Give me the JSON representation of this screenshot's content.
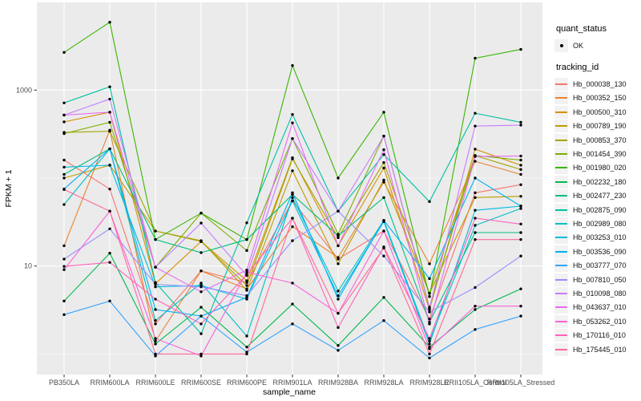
{
  "axes": {
    "x_title": "sample_name",
    "y_title": "FPKM + 1"
  },
  "legend": {
    "quant_status": {
      "title": "quant_status",
      "items": [
        {
          "label": "OK",
          "symbol": "black-point"
        }
      ]
    },
    "tracking_id": {
      "title": "tracking_id"
    }
  },
  "chart_data": {
    "type": "line",
    "title": "",
    "xlabel": "sample_name",
    "ylabel": "FPKM + 1",
    "yscale": "log10",
    "ylim": [
      0.58,
      9900
    ],
    "x_categories": [
      "PB350LA",
      "RRIM600LA",
      "RRIM600LE",
      "RRIM600SE",
      "RRIM600PE",
      "RRIM901LA",
      "RRIM928BA",
      "RRIM928LA",
      "RRIM928LE",
      "RRII105LA_Control",
      "RRII105LA_Stressed"
    ],
    "y_ticks": [
      {
        "label": "1000",
        "value": 1000
      },
      {
        "label": "10",
        "value": 10
      }
    ],
    "y_minor_gridlines": [
      1,
      100
    ],
    "panel_bg": "#EBEBEB",
    "gridline_color": "#FFFFFF",
    "point_color": "#000000",
    "legend_position": "right",
    "series": [
      {
        "name": "Hb_000038_130",
        "color": "#F8766D",
        "values": [
          160,
          75,
          2.2,
          8.8,
          6.5,
          55,
          12,
          25,
          2.5,
          68,
          84
        ]
      },
      {
        "name": "Hb_000352_150",
        "color": "#EA8331",
        "values": [
          17,
          350,
          1.4,
          8.8,
          5.5,
          28,
          12.5,
          90,
          10.6,
          155,
          110
        ]
      },
      {
        "name": "Hb_000500_310",
        "color": "#D89000",
        "values": [
          435,
          560,
          6.3,
          19,
          6.8,
          170,
          17,
          130,
          3.2,
          213,
          140
        ]
      },
      {
        "name": "Hb_000789_190",
        "color": "#C09B00",
        "values": [
          100,
          140,
          25,
          19.4,
          5.3,
          121,
          10.6,
          95,
          4.9,
          60,
          62
        ]
      },
      {
        "name": "Hb_000853_370",
        "color": "#A3A500",
        "values": [
          330,
          340,
          25,
          19,
          6.0,
          165,
          21,
          150,
          4.9,
          180,
          125
        ]
      },
      {
        "name": "Hb_001454_390",
        "color": "#7CAE00",
        "values": [
          320,
          430,
          9.7,
          40,
          15,
          281,
          23,
          300,
          3.4,
          180,
          160
        ]
      },
      {
        "name": "Hb_001980_020",
        "color": "#39B600",
        "values": [
          2680,
          5900,
          20,
          40,
          20,
          1900,
          100,
          560,
          4.5,
          2300,
          2900
        ]
      },
      {
        "name": "Hb_002232_180",
        "color": "#00BB4E",
        "values": [
          4.0,
          14,
          1.3,
          3.4,
          1.2,
          3.7,
          1.25,
          4.4,
          1.2,
          3.2,
          5.5
        ]
      },
      {
        "name": "Hb_002477_230",
        "color": "#00BF7D",
        "values": [
          110,
          215,
          20,
          14.2,
          20,
          65,
          22,
          60,
          2.3,
          24,
          24
        ]
      },
      {
        "name": "Hb_002875_090",
        "color": "#00C1A3",
        "values": [
          715,
          1090,
          6.5,
          1.7,
          31,
          528,
          42,
          185,
          54,
          545,
          430
        ]
      },
      {
        "name": "Hb_002989_080",
        "color": "#00BFC4",
        "values": [
          50,
          215,
          2.4,
          6.4,
          1.6,
          60,
          5.2,
          33,
          1.4,
          29,
          45
        ]
      },
      {
        "name": "Hb_003253_010",
        "color": "#00BAE0",
        "values": [
          133,
          140,
          5.8,
          6.0,
          4.2,
          55,
          4.6,
          32,
          1.3,
          43,
          48
        ]
      },
      {
        "name": "Hb_003536_090",
        "color": "#00B0F6",
        "values": [
          75,
          215,
          3.2,
          2.7,
          4.4,
          68,
          4.2,
          33,
          7.2,
          100,
          48
        ]
      },
      {
        "name": "Hb_003777_070",
        "color": "#35A2FF",
        "values": [
          2.8,
          4.0,
          0.95,
          2.7,
          1.05,
          2.2,
          1.1,
          2.4,
          0.9,
          1.9,
          2.7
        ]
      },
      {
        "name": "Hb_007810_050",
        "color": "#9590FF",
        "values": [
          12,
          26.5,
          6.2,
          5.8,
          4.6,
          19.4,
          42,
          13,
          3.0,
          5.7,
          13
        ]
      },
      {
        "name": "Hb_010098_080",
        "color": "#C77CFF",
        "values": [
          520,
          790,
          9.7,
          30.8,
          7.8,
          281,
          42,
          300,
          3.3,
          390,
          400
        ]
      },
      {
        "name": "Hb_043637_010",
        "color": "#E76BF3",
        "values": [
          520,
          560,
          9.7,
          5.1,
          9.0,
          424,
          17,
          210,
          2.2,
          176,
          178
        ]
      },
      {
        "name": "Hb_053262_010",
        "color": "#FA62DB",
        "values": [
          9.1,
          42,
          1.5,
          0.95,
          8.5,
          6.4,
          2.9,
          25,
          1.15,
          3.5,
          3.5
        ]
      },
      {
        "name": "Hb_170116_010",
        "color": "#FF62BC",
        "values": [
          9.9,
          11,
          4.2,
          2.2,
          8.0,
          35,
          2.0,
          16.5,
          1.5,
          35,
          30
        ]
      },
      {
        "name": "Hb_175445_010",
        "color": "#FF6A98",
        "values": [
          74,
          42,
          1.0,
          1.0,
          1.0,
          35,
          2.9,
          16,
          1.0,
          20,
          20
        ]
      }
    ]
  }
}
